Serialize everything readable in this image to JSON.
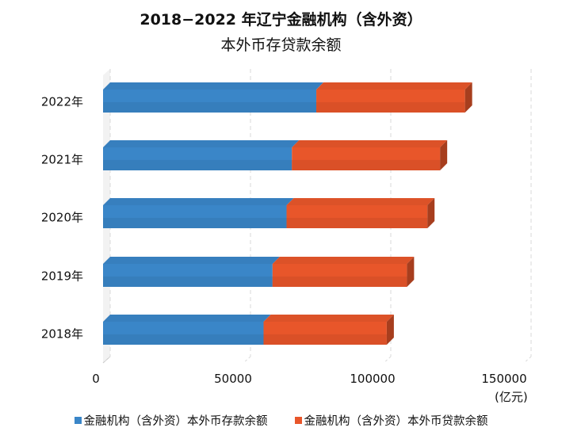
{
  "chart_data": {
    "type": "bar",
    "orientation": "horizontal",
    "stacked": true,
    "title": [
      "2018−2022 年辽宁金融机构（含外资）",
      "本外币存贷款余额"
    ],
    "categories": [
      "2022年",
      "2021年",
      "2020年",
      "2019年",
      "2018年"
    ],
    "series": [
      {
        "name": "金融机构（含外资）本外币存款余额",
        "color": "#3a86c8",
        "values": [
          76000,
          67300,
          65400,
          60400,
          57200
        ]
      },
      {
        "name": "金融机构（含外资）本外币贷款余额",
        "color": "#e8562a",
        "values": [
          53000,
          52800,
          50200,
          47900,
          43900
        ]
      }
    ],
    "xticks": [
      "0",
      "50000",
      "100000",
      "150000"
    ],
    "xlim": [
      0,
      150000
    ],
    "unit_label": "(亿元)",
    "legend_position": "bottom"
  }
}
